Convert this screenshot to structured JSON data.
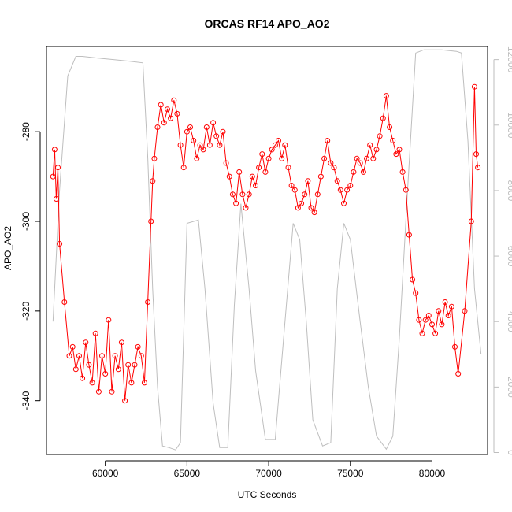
{
  "chart_data": {
    "type": "scatter",
    "title": "ORCAS RF14 APO_AO2",
    "xlabel": "UTC Seconds",
    "ylabel": "APO_AO2",
    "xlim": [
      56400,
      83400
    ],
    "ylim": [
      -352,
      -261
    ],
    "y2lim": [
      -60,
      12400
    ],
    "grid": false,
    "x_ticks": [
      60000,
      65000,
      70000,
      75000,
      80000
    ],
    "y_ticks": [
      -340,
      -320,
      -300,
      -280
    ],
    "y2_ticks": [
      0,
      2000,
      4000,
      6000,
      8000,
      10000,
      12000
    ],
    "colors": {
      "primary_series": "#ff0000",
      "secondary_series": "#bebebe",
      "axes": "#000000",
      "background": "#ffffff"
    },
    "series": [
      {
        "color": "#ff0000",
        "style": "line-with-open-circles",
        "axis": "left",
        "points": [
          [
            56800,
            -290
          ],
          [
            56900,
            -284
          ],
          [
            57000,
            -295
          ],
          [
            57100,
            -288
          ],
          [
            57200,
            -305
          ],
          [
            57500,
            -318
          ],
          [
            57800,
            -330
          ],
          [
            58000,
            -328
          ],
          [
            58200,
            -333
          ],
          [
            58400,
            -330
          ],
          [
            58600,
            -335
          ],
          [
            58800,
            -327
          ],
          [
            59000,
            -332
          ],
          [
            59200,
            -336
          ],
          [
            59400,
            -325
          ],
          [
            59600,
            -338
          ],
          [
            59800,
            -330
          ],
          [
            60000,
            -334
          ],
          [
            60200,
            -322
          ],
          [
            60400,
            -338
          ],
          [
            60600,
            -330
          ],
          [
            60800,
            -333
          ],
          [
            61000,
            -327
          ],
          [
            61200,
            -340
          ],
          [
            61400,
            -332
          ],
          [
            61600,
            -336
          ],
          [
            61800,
            -332
          ],
          [
            62000,
            -328
          ],
          [
            62200,
            -330
          ],
          [
            62400,
            -336
          ],
          [
            62600,
            -318
          ],
          [
            62800,
            -300
          ],
          [
            62900,
            -291
          ],
          [
            63000,
            -286
          ],
          [
            63200,
            -279
          ],
          [
            63400,
            -274
          ],
          [
            63600,
            -278
          ],
          [
            63800,
            -275
          ],
          [
            64000,
            -277
          ],
          [
            64200,
            -273
          ],
          [
            64400,
            -276
          ],
          [
            64600,
            -283
          ],
          [
            64800,
            -288
          ],
          [
            65000,
            -280
          ],
          [
            65200,
            -279
          ],
          [
            65400,
            -282
          ],
          [
            65600,
            -286
          ],
          [
            65800,
            -283
          ],
          [
            66000,
            -284
          ],
          [
            66200,
            -279
          ],
          [
            66400,
            -283
          ],
          [
            66600,
            -278
          ],
          [
            66800,
            -281
          ],
          [
            67000,
            -283
          ],
          [
            67200,
            -280
          ],
          [
            67400,
            -287
          ],
          [
            67600,
            -290
          ],
          [
            67800,
            -294
          ],
          [
            68000,
            -296
          ],
          [
            68200,
            -289
          ],
          [
            68400,
            -294
          ],
          [
            68600,
            -297
          ],
          [
            68800,
            -294
          ],
          [
            69000,
            -290
          ],
          [
            69200,
            -292
          ],
          [
            69400,
            -288
          ],
          [
            69600,
            -285
          ],
          [
            69800,
            -289
          ],
          [
            70000,
            -286
          ],
          [
            70200,
            -284
          ],
          [
            70400,
            -283
          ],
          [
            70600,
            -282
          ],
          [
            70800,
            -286
          ],
          [
            71000,
            -283
          ],
          [
            71200,
            -288
          ],
          [
            71400,
            -292
          ],
          [
            71600,
            -293
          ],
          [
            71800,
            -297
          ],
          [
            72000,
            -296
          ],
          [
            72200,
            -294
          ],
          [
            72400,
            -291
          ],
          [
            72600,
            -297
          ],
          [
            72800,
            -298
          ],
          [
            73000,
            -294
          ],
          [
            73200,
            -290
          ],
          [
            73400,
            -286
          ],
          [
            73600,
            -282
          ],
          [
            73800,
            -287
          ],
          [
            74000,
            -288
          ],
          [
            74200,
            -291
          ],
          [
            74400,
            -293
          ],
          [
            74600,
            -296
          ],
          [
            74800,
            -293
          ],
          [
            75000,
            -292
          ],
          [
            75200,
            -289
          ],
          [
            75400,
            -286
          ],
          [
            75600,
            -287
          ],
          [
            75800,
            -289
          ],
          [
            76000,
            -286
          ],
          [
            76200,
            -283
          ],
          [
            76400,
            -286
          ],
          [
            76600,
            -284
          ],
          [
            76800,
            -281
          ],
          [
            77000,
            -277
          ],
          [
            77200,
            -272
          ],
          [
            77400,
            -279
          ],
          [
            77600,
            -282
          ],
          [
            77800,
            -285
          ],
          [
            78000,
            -284
          ],
          [
            78200,
            -289
          ],
          [
            78400,
            -293
          ],
          [
            78600,
            -303
          ],
          [
            78800,
            -313
          ],
          [
            79000,
            -316
          ],
          [
            79200,
            -322
          ],
          [
            79400,
            -325
          ],
          [
            79600,
            -322
          ],
          [
            79800,
            -321
          ],
          [
            80000,
            -323
          ],
          [
            80200,
            -325
          ],
          [
            80400,
            -320
          ],
          [
            80600,
            -323
          ],
          [
            80800,
            -318
          ],
          [
            81000,
            -321
          ],
          [
            81200,
            -319
          ],
          [
            81400,
            -328
          ],
          [
            81600,
            -334
          ],
          [
            82000,
            -320
          ],
          [
            82400,
            -300
          ],
          [
            82600,
            -270
          ],
          [
            82700,
            -285
          ],
          [
            82800,
            -288
          ]
        ]
      },
      {
        "color": "#bebebe",
        "style": "line",
        "axis": "right",
        "points": [
          [
            56800,
            4000
          ],
          [
            57200,
            8000
          ],
          [
            57700,
            11500
          ],
          [
            58200,
            12100
          ],
          [
            58600,
            12100
          ],
          [
            59500,
            12050
          ],
          [
            60500,
            12000
          ],
          [
            61500,
            11950
          ],
          [
            62300,
            11900
          ],
          [
            62600,
            9000
          ],
          [
            62900,
            5000
          ],
          [
            63200,
            2000
          ],
          [
            63500,
            200
          ],
          [
            63900,
            150
          ],
          [
            64300,
            80
          ],
          [
            64600,
            300
          ],
          [
            65000,
            7000
          ],
          [
            65700,
            7100
          ],
          [
            66100,
            5000
          ],
          [
            66600,
            1500
          ],
          [
            67000,
            150
          ],
          [
            67500,
            150
          ],
          [
            67900,
            4500
          ],
          [
            68300,
            7600
          ],
          [
            68800,
            5000
          ],
          [
            69200,
            2500
          ],
          [
            69800,
            400
          ],
          [
            70400,
            400
          ],
          [
            71000,
            4000
          ],
          [
            71500,
            7000
          ],
          [
            71900,
            6500
          ],
          [
            72300,
            4000
          ],
          [
            72700,
            1000
          ],
          [
            73300,
            200
          ],
          [
            73800,
            300
          ],
          [
            74200,
            5000
          ],
          [
            74600,
            7000
          ],
          [
            75000,
            6500
          ],
          [
            75600,
            4000
          ],
          [
            76100,
            2000
          ],
          [
            76600,
            500
          ],
          [
            77200,
            100
          ],
          [
            77600,
            500
          ],
          [
            78000,
            3500
          ],
          [
            78500,
            8000
          ],
          [
            79000,
            12200
          ],
          [
            79500,
            12300
          ],
          [
            80000,
            12300
          ],
          [
            80600,
            12300
          ],
          [
            81500,
            12250
          ],
          [
            81800,
            12200
          ],
          [
            82200,
            9500
          ],
          [
            82600,
            5000
          ],
          [
            83000,
            3000
          ]
        ]
      }
    ]
  }
}
